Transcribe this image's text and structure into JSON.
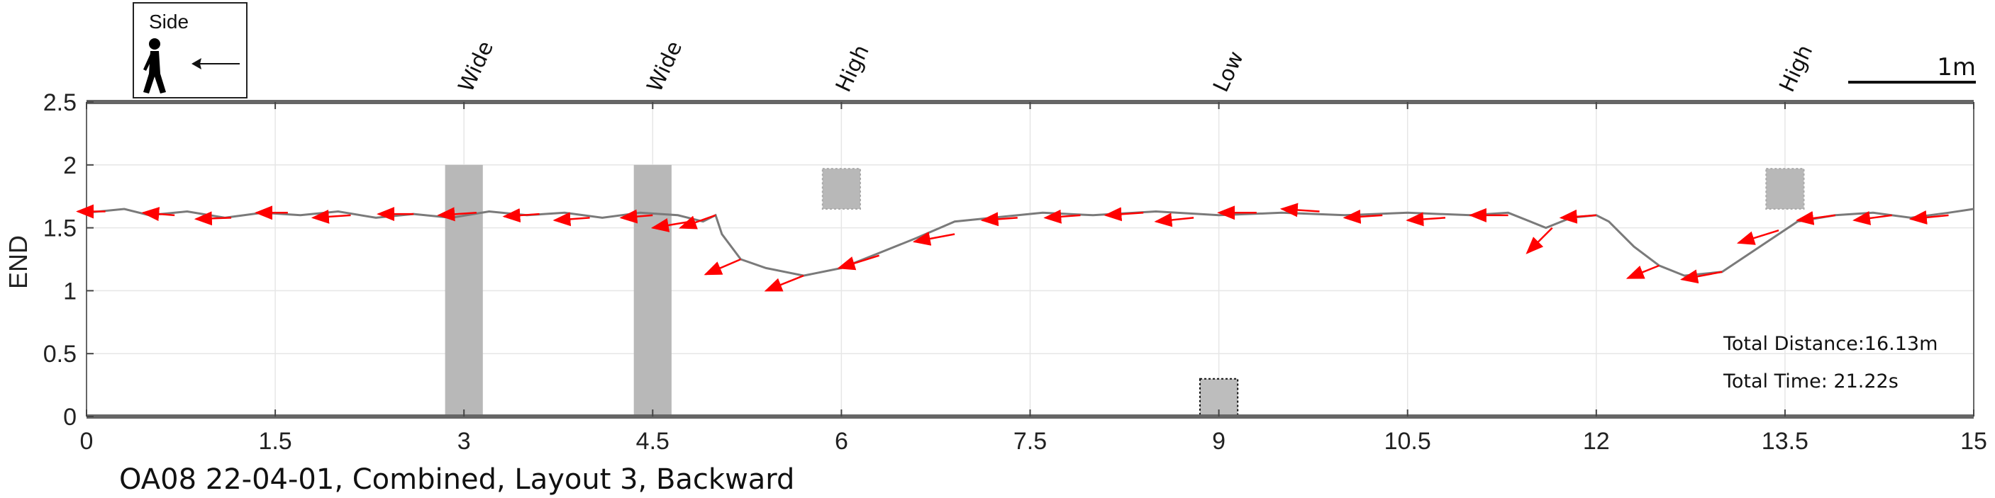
{
  "chart_data": {
    "type": "line",
    "title": "OA08 22-04-01, Combined, Layout 3, Backward",
    "xlabel": "",
    "ylabel": "END",
    "xlim": [
      0,
      15
    ],
    "ylim": [
      0,
      2.5
    ],
    "xticks": [
      "0",
      "1.5",
      "3",
      "4.5",
      "6",
      "7.5",
      "9",
      "10.5",
      "12",
      "13.5",
      "15"
    ],
    "xtick_values": [
      0,
      1.5,
      3,
      4.5,
      6,
      7.5,
      9,
      10.5,
      12,
      13.5,
      15
    ],
    "yticks": [
      "0",
      "0.5",
      "1",
      "1.5",
      "2",
      "2.5"
    ],
    "ytick_values": [
      0,
      0.5,
      1,
      1.5,
      2,
      2.5
    ],
    "grid": true,
    "legend_label": "Side",
    "scale_bar_label": "1m",
    "annotations": {
      "total_distance": "Total Distance:16.13m",
      "total_time": "Total Time: 21.22s"
    },
    "obstacles": [
      {
        "label": "Wide",
        "x0": 2.85,
        "x1": 3.15,
        "y0": 0,
        "y1": 2.0,
        "style": "solid"
      },
      {
        "label": "Wide",
        "x0": 4.35,
        "x1": 4.65,
        "y0": 0,
        "y1": 2.0,
        "style": "solid"
      },
      {
        "label": "High",
        "x0": 5.85,
        "x1": 6.15,
        "y0": 1.65,
        "y1": 1.97,
        "style": "dotted"
      },
      {
        "label": "Low",
        "x0": 8.85,
        "x1": 9.15,
        "y0": 0,
        "y1": 0.3,
        "style": "dotted-low"
      },
      {
        "label": "High",
        "x0": 13.35,
        "x1": 13.65,
        "y0": 1.65,
        "y1": 1.97,
        "style": "dotted"
      }
    ],
    "series": [
      {
        "x": [
          0,
          0.3,
          0.5,
          0.8,
          1.1,
          1.4,
          1.7,
          2.0,
          2.3,
          2.6,
          2.9,
          3.2,
          3.5,
          3.8,
          4.1,
          4.4,
          4.7,
          4.9,
          5.0,
          5.05,
          5.2,
          5.4,
          5.7,
          6.0,
          6.3,
          6.6,
          6.9,
          7.2,
          7.6,
          8.0,
          8.5,
          9.0,
          9.5,
          10.0,
          10.5,
          11.0,
          11.3,
          11.6,
          11.8,
          12.0,
          12.1,
          12.3,
          12.5,
          12.7,
          13.0,
          13.3,
          13.6,
          13.9,
          14.2,
          14.5,
          14.8,
          15.0
        ],
        "y": [
          1.62,
          1.65,
          1.6,
          1.63,
          1.58,
          1.62,
          1.6,
          1.63,
          1.58,
          1.61,
          1.58,
          1.63,
          1.6,
          1.62,
          1.58,
          1.62,
          1.6,
          1.55,
          1.6,
          1.45,
          1.25,
          1.18,
          1.12,
          1.18,
          1.3,
          1.42,
          1.55,
          1.58,
          1.62,
          1.6,
          1.63,
          1.6,
          1.62,
          1.6,
          1.62,
          1.6,
          1.62,
          1.5,
          1.58,
          1.6,
          1.55,
          1.35,
          1.2,
          1.12,
          1.15,
          1.35,
          1.55,
          1.6,
          1.62,
          1.58,
          1.62,
          1.65
        ]
      }
    ],
    "arrows": [
      {
        "x": 0.15,
        "y": 1.63,
        "dx": -0.22,
        "dy": 0.0
      },
      {
        "x": 0.7,
        "y": 1.6,
        "dx": -0.25,
        "dy": 0.02
      },
      {
        "x": 1.15,
        "y": 1.58,
        "dx": -0.28,
        "dy": -0.01
      },
      {
        "x": 1.6,
        "y": 1.62,
        "dx": -0.25,
        "dy": 0.0
      },
      {
        "x": 2.1,
        "y": 1.6,
        "dx": -0.3,
        "dy": -0.02
      },
      {
        "x": 2.6,
        "y": 1.61,
        "dx": -0.28,
        "dy": 0.0
      },
      {
        "x": 3.1,
        "y": 1.62,
        "dx": -0.3,
        "dy": -0.02
      },
      {
        "x": 3.6,
        "y": 1.61,
        "dx": -0.28,
        "dy": -0.02
      },
      {
        "x": 4.0,
        "y": 1.58,
        "dx": -0.28,
        "dy": -0.02
      },
      {
        "x": 4.5,
        "y": 1.6,
        "dx": -0.25,
        "dy": -0.02
      },
      {
        "x": 4.8,
        "y": 1.55,
        "dx": -0.3,
        "dy": -0.05
      },
      {
        "x": 5.0,
        "y": 1.6,
        "dx": -0.28,
        "dy": -0.1
      },
      {
        "x": 5.2,
        "y": 1.25,
        "dx": -0.28,
        "dy": -0.12
      },
      {
        "x": 5.7,
        "y": 1.12,
        "dx": -0.3,
        "dy": -0.12
      },
      {
        "x": 6.3,
        "y": 1.28,
        "dx": -0.32,
        "dy": -0.1
      },
      {
        "x": 6.9,
        "y": 1.45,
        "dx": -0.32,
        "dy": -0.06
      },
      {
        "x": 7.4,
        "y": 1.58,
        "dx": -0.28,
        "dy": -0.02
      },
      {
        "x": 7.9,
        "y": 1.6,
        "dx": -0.28,
        "dy": -0.02
      },
      {
        "x": 8.4,
        "y": 1.62,
        "dx": -0.3,
        "dy": -0.02
      },
      {
        "x": 8.8,
        "y": 1.58,
        "dx": -0.3,
        "dy": -0.03
      },
      {
        "x": 9.3,
        "y": 1.62,
        "dx": -0.3,
        "dy": 0.0
      },
      {
        "x": 9.8,
        "y": 1.63,
        "dx": -0.3,
        "dy": 0.02
      },
      {
        "x": 10.3,
        "y": 1.6,
        "dx": -0.3,
        "dy": -0.02
      },
      {
        "x": 10.8,
        "y": 1.58,
        "dx": -0.3,
        "dy": -0.02
      },
      {
        "x": 11.3,
        "y": 1.6,
        "dx": -0.3,
        "dy": 0.0
      },
      {
        "x": 11.65,
        "y": 1.5,
        "dx": -0.2,
        "dy": -0.2
      },
      {
        "x": 12.0,
        "y": 1.6,
        "dx": -0.28,
        "dy": -0.02
      },
      {
        "x": 12.5,
        "y": 1.2,
        "dx": -0.25,
        "dy": -0.1
      },
      {
        "x": 13.0,
        "y": 1.15,
        "dx": -0.32,
        "dy": -0.06
      },
      {
        "x": 13.45,
        "y": 1.48,
        "dx": -0.32,
        "dy": -0.1
      },
      {
        "x": 13.9,
        "y": 1.6,
        "dx": -0.3,
        "dy": -0.04
      },
      {
        "x": 14.35,
        "y": 1.6,
        "dx": -0.3,
        "dy": -0.04
      },
      {
        "x": 14.8,
        "y": 1.6,
        "dx": -0.3,
        "dy": -0.03
      }
    ],
    "colors": {
      "trajectory": "#7a7a7a",
      "arrow": "#ff0000",
      "obstacle": "#b8b8b8",
      "axis": "#666666",
      "grid": "#e6e6e6"
    },
    "icon": "walking-person-icon"
  }
}
